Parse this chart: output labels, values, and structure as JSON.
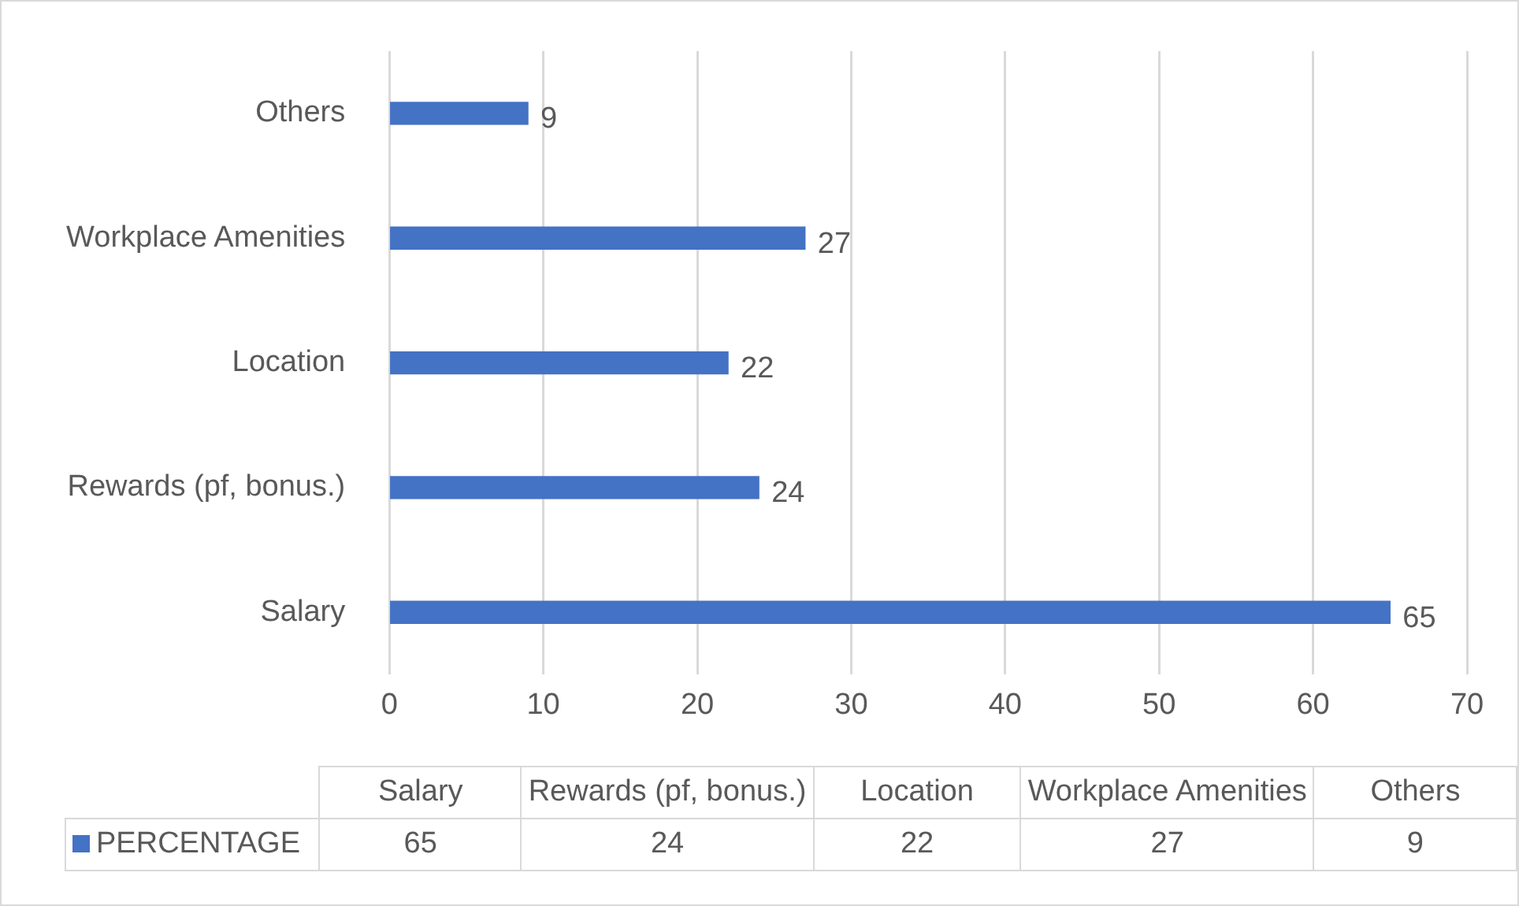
{
  "chart_data": [
    {
      "type": "bar",
      "orientation": "horizontal",
      "categories": [
        "Others",
        "Workplace Amenities",
        "Location",
        "Rewards (pf, bonus.)",
        "Salary"
      ],
      "series": [
        {
          "color": "#4472c4",
          "values": [
            9,
            27,
            22,
            24,
            65
          ]
        }
      ],
      "xlim": [
        0,
        70
      ],
      "xticks": [
        0,
        10,
        20,
        30,
        40,
        50,
        60,
        70
      ],
      "grid": "x",
      "data_labels": true
    },
    {
      "type": "other",
      "categories": [
        "Salary",
        "Rewards (pf, bonus.)",
        "Location",
        "Workplace Amenities",
        "Others"
      ],
      "series": [
        {
          "name": "PERCENTAGE",
          "color": "#4472c4",
          "values": [
            65,
            24,
            22,
            27,
            9
          ]
        }
      ],
      "data_labels": true,
      "legend": "left"
    }
  ]
}
